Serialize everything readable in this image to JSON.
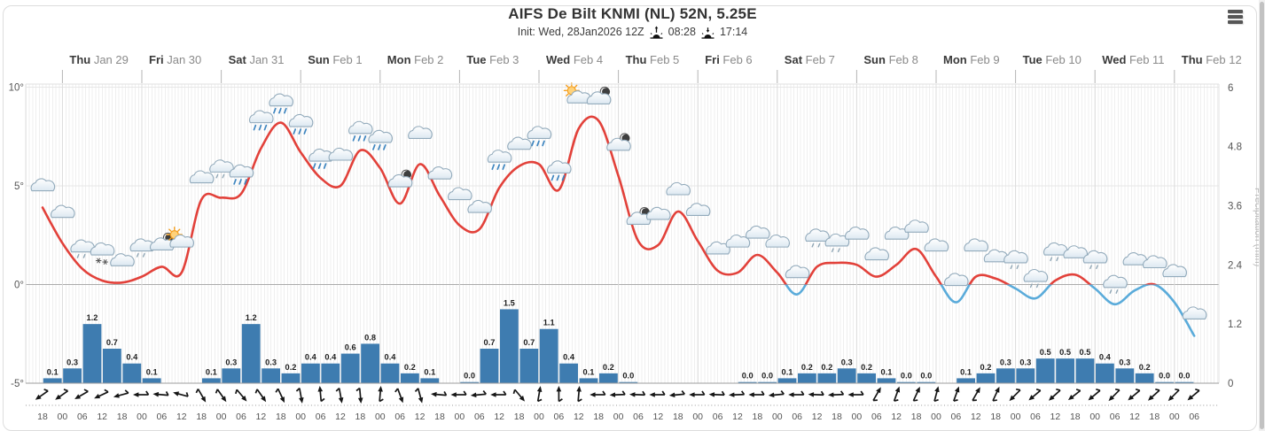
{
  "header": {
    "title": "AIFS De Bilt KNMI (NL) 52N, 5.25E",
    "init_label": "Init: Wed, 28Jan2026 12Z",
    "sunrise_time": "08:28",
    "sunset_time": "17:14"
  },
  "menu": {
    "icon": "hamburger-menu-icon"
  },
  "axes": {
    "temp_tick_labels": [
      "10°",
      "5°",
      "0°",
      "-5°"
    ],
    "temp_tick_values": [
      10,
      5,
      0,
      -5
    ],
    "precip_tick_labels": [
      "6",
      "4.8",
      "3.6",
      "2.4",
      "1.2",
      "0"
    ],
    "precip_tick_values": [
      6,
      4.8,
      3.6,
      2.4,
      1.2,
      0
    ],
    "right_axis_label": "Precipitation (mm)"
  },
  "days": [
    {
      "name": "Thu",
      "date": "Jan 29"
    },
    {
      "name": "Fri",
      "date": "Jan 30"
    },
    {
      "name": "Sat",
      "date": "Jan 31"
    },
    {
      "name": "Sun",
      "date": "Feb 1"
    },
    {
      "name": "Mon",
      "date": "Feb 2"
    },
    {
      "name": "Tue",
      "date": "Feb 3"
    },
    {
      "name": "Wed",
      "date": "Feb 4"
    },
    {
      "name": "Thu",
      "date": "Feb 5"
    },
    {
      "name": "Fri",
      "date": "Feb 6"
    },
    {
      "name": "Sat",
      "date": "Feb 7"
    },
    {
      "name": "Sun",
      "date": "Feb 8"
    },
    {
      "name": "Mon",
      "date": "Feb 9"
    },
    {
      "name": "Tue",
      "date": "Feb 10"
    },
    {
      "name": "Wed",
      "date": "Feb 11"
    },
    {
      "name": "Thu",
      "date": "Feb 12"
    }
  ],
  "chart_data": {
    "type": "line+bar",
    "title": "AIFS De Bilt KNMI (NL) 52N, 5.25E",
    "x_time_labels": [
      "18",
      "00",
      "06",
      "12",
      "18",
      "00",
      "06",
      "12",
      "18",
      "00",
      "06",
      "12",
      "18",
      "00",
      "06",
      "12",
      "18",
      "00",
      "06",
      "12",
      "18",
      "00",
      "06",
      "12",
      "18",
      "00",
      "06",
      "12",
      "18",
      "00",
      "06",
      "12",
      "18",
      "00",
      "06",
      "12",
      "18",
      "00",
      "06",
      "12",
      "18",
      "00",
      "06",
      "12",
      "18",
      "00",
      "06",
      "12",
      "18",
      "00",
      "06",
      "12",
      "18",
      "00",
      "06",
      "12",
      "18",
      "00",
      "06"
    ],
    "temp_axis_range": [
      -5,
      10
    ],
    "precip_axis_range": [
      0,
      6
    ],
    "series": [
      {
        "name": "Temperature (°C)",
        "type": "line",
        "values": [
          3.9,
          2.1,
          0.8,
          0.2,
          0.1,
          0.4,
          0.9,
          0.6,
          4.3,
          4.4,
          4.6,
          6.9,
          8.2,
          6.7,
          5.4,
          5.0,
          6.8,
          5.9,
          4.1,
          6.1,
          4.5,
          3.0,
          2.8,
          4.9,
          6.0,
          6.1,
          4.8,
          7.9,
          8.3,
          5.5,
          2.2,
          2.0,
          3.7,
          2.2,
          0.7,
          0.6,
          1.5,
          0.6,
          -0.5,
          0.9,
          1.1,
          1.0,
          0.4,
          1.0,
          1.8,
          0.4,
          -0.9,
          0.4,
          0.3,
          -0.2,
          -0.7,
          0.2,
          0.5,
          -0.2,
          -1.0,
          -0.3,
          0.0,
          -0.9,
          -2.6
        ]
      },
      {
        "name": "Precipitation (mm)",
        "type": "bar",
        "values": [
          0.1,
          0.3,
          1.2,
          0.7,
          0.4,
          0.1,
          null,
          null,
          0.1,
          0.3,
          1.2,
          0.3,
          0.2,
          0.4,
          0.4,
          0.6,
          0.8,
          0.4,
          0.2,
          0.1,
          null,
          0.0,
          0.7,
          1.5,
          0.7,
          1.1,
          0.4,
          0.1,
          0.2,
          0.0,
          null,
          null,
          null,
          null,
          null,
          0.0,
          0.0,
          0.1,
          0.2,
          0.2,
          0.3,
          0.2,
          0.1,
          0.0,
          0.0,
          null,
          0.1,
          0.2,
          0.3,
          0.3,
          0.5,
          0.5,
          0.5,
          0.4,
          0.3,
          0.2,
          0.0,
          0.0
        ]
      }
    ],
    "weather_icons": [
      "cloud",
      "cloud",
      "cloud-drizzle",
      "cloud-snow",
      "cloud",
      "cloud-drizzle",
      "moon-cloud",
      "sun-cloud",
      "cloud",
      "cloud-drizzle",
      "cloud-rain",
      "cloud-rain",
      "cloud-rain",
      "cloud-rain",
      "cloud-rain",
      "cloud",
      "cloud-rain",
      "cloud-rain",
      "moon-cloud",
      "cloud",
      "cloud",
      "cloud",
      "cloud",
      "cloud-rain",
      "cloud",
      "cloud-rain",
      "cloud-rain",
      "sun-cloud",
      "moon-cloud",
      "moon-cloud",
      "moon-cloud",
      "cloud",
      "cloud",
      "cloud",
      "cloud",
      "cloud",
      "cloud",
      "cloud",
      "cloud",
      "cloud-drizzle",
      "cloud-drizzle",
      "cloud",
      "cloud",
      "cloud",
      "cloud",
      "cloud",
      "cloud",
      "cloud",
      "cloud",
      "cloud-drizzle",
      "cloud-drizzle",
      "cloud-drizzle",
      "cloud",
      "cloud-drizzle",
      "cloud-drizzle",
      "cloud",
      "cloud",
      "cloud",
      "cloud"
    ],
    "wind_direction_deg": [
      235,
      235,
      240,
      245,
      255,
      270,
      275,
      285,
      150,
      145,
      140,
      145,
      155,
      170,
      355,
      170,
      175,
      5,
      160,
      165,
      275,
      270,
      265,
      270,
      140,
      10,
      0,
      5,
      270,
      268,
      272,
      270,
      265,
      270,
      272,
      268,
      270,
      265,
      270,
      272,
      268,
      270,
      30,
      20,
      25,
      15,
      20,
      30,
      25,
      225,
      230,
      228,
      232,
      230,
      225,
      230,
      228,
      225,
      230
    ],
    "colors": {
      "temp_above_zero": "#e2413a",
      "temp_below_zero": "#5aabda",
      "precip_bar": "#3e7cb0"
    }
  }
}
